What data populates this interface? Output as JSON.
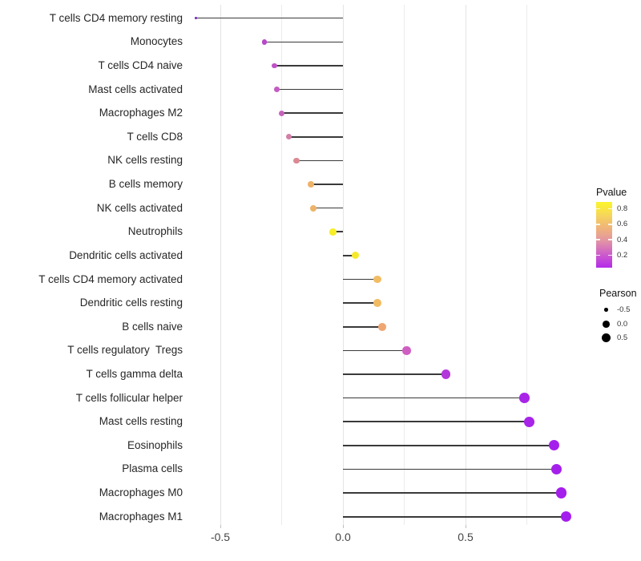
{
  "chart_data": {
    "type": "lollipop",
    "orientation": "horizontal",
    "title": "",
    "xlabel": "",
    "ylabel": "",
    "xlim": [
      -0.65,
      0.95
    ],
    "grid": "vertical-only",
    "x_ticks": [
      {
        "label": "-0.5",
        "value": -0.5
      },
      {
        "label": "0.0",
        "value": 0.0
      },
      {
        "label": "0.5",
        "value": 0.5
      }
    ],
    "gridline_values": [
      -0.5,
      -0.25,
      0.0,
      0.25,
      0.5,
      0.75
    ],
    "points": [
      {
        "label": "T cells CD4 memory resting",
        "pearson": -0.6,
        "color": "#7127b8",
        "pvalue_approx": 0.02
      },
      {
        "label": "Monocytes",
        "pearson": -0.32,
        "color": "#b648c8",
        "pvalue_approx": 0.12
      },
      {
        "label": "T cells CD4 naive",
        "pearson": -0.28,
        "color": "#bf52c6",
        "pvalue_approx": 0.14
      },
      {
        "label": "Mast cells activated",
        "pearson": -0.27,
        "color": "#c45cc2",
        "pvalue_approx": 0.16
      },
      {
        "label": "Macrophages M2",
        "pearson": -0.25,
        "color": "#c763bd",
        "pvalue_approx": 0.18
      },
      {
        "label": "T cells CD8",
        "pearson": -0.22,
        "color": "#d37fa8",
        "pvalue_approx": 0.32
      },
      {
        "label": "NK cells resting",
        "pearson": -0.19,
        "color": "#da8a93",
        "pvalue_approx": 0.42
      },
      {
        "label": "B cells memory",
        "pearson": -0.13,
        "color": "#eeb268",
        "pvalue_approx": 0.6
      },
      {
        "label": "NK cells activated",
        "pearson": -0.12,
        "color": "#eeb366",
        "pvalue_approx": 0.6
      },
      {
        "label": "Neutrophils",
        "pearson": -0.04,
        "color": "#f7ee26",
        "pvalue_approx": 0.85
      },
      {
        "label": "Dendritic cells activated",
        "pearson": 0.05,
        "color": "#f5e92b",
        "pvalue_approx": 0.84
      },
      {
        "label": "T cells CD4 memory activated",
        "pearson": 0.14,
        "color": "#f2bc63",
        "pvalue_approx": 0.63
      },
      {
        "label": "Dendritic cells resting",
        "pearson": 0.14,
        "color": "#f1bb64",
        "pvalue_approx": 0.63
      },
      {
        "label": "B cells naive",
        "pearson": 0.16,
        "color": "#efa673",
        "pvalue_approx": 0.55
      },
      {
        "label": "T cells regulatory  Tregs",
        "pearson": 0.26,
        "color": "#cf5ec3",
        "pvalue_approx": 0.18
      },
      {
        "label": "T cells gamma delta",
        "pearson": 0.42,
        "color": "#b338da",
        "pvalue_approx": 0.08
      },
      {
        "label": "T cells follicular helper",
        "pearson": 0.74,
        "color": "#a825e8",
        "pvalue_approx": 0.03
      },
      {
        "label": "Mast cells resting",
        "pearson": 0.76,
        "color": "#a824e9",
        "pvalue_approx": 0.03
      },
      {
        "label": "Eosinophils",
        "pearson": 0.86,
        "color": "#a51fec",
        "pvalue_approx": 0.02
      },
      {
        "label": "Plasma cells",
        "pearson": 0.87,
        "color": "#a51feb",
        "pvalue_approx": 0.02
      },
      {
        "label": "Macrophages M0",
        "pearson": 0.89,
        "color": "#a41eec",
        "pvalue_approx": 0.015
      },
      {
        "label": "Macrophages M1",
        "pearson": 0.91,
        "color": "#a41eed",
        "pvalue_approx": 0.015
      }
    ],
    "legend": {
      "pvalue": {
        "title": "Pvalue",
        "ticks": [
          {
            "label": "0.8",
            "value": 0.8
          },
          {
            "label": "0.6",
            "value": 0.6
          },
          {
            "label": "0.4",
            "value": 0.4
          },
          {
            "label": "0.2",
            "value": 0.2
          }
        ],
        "bar_value_top": 0.887,
        "bar_value_bottom": 0.042,
        "gradient_bottom_to_top": [
          {
            "pos": "0%",
            "color": "#b32be9"
          },
          {
            "pos": "10%",
            "color": "#c143db"
          },
          {
            "pos": "20%",
            "color": "#cd5bcb"
          },
          {
            "pos": "30%",
            "color": "#d778b8"
          },
          {
            "pos": "40%",
            "color": "#e192a6"
          },
          {
            "pos": "50%",
            "color": "#e9a48f"
          },
          {
            "pos": "60%",
            "color": "#efb37b"
          },
          {
            "pos": "70%",
            "color": "#f3c46a"
          },
          {
            "pos": "80%",
            "color": "#f6d65b"
          },
          {
            "pos": "90%",
            "color": "#f9e73f"
          },
          {
            "pos": "100%",
            "color": "#fbf42b"
          }
        ]
      },
      "pearson": {
        "title": "Pearson",
        "items": [
          {
            "label": "-0.5",
            "value": -0.5
          },
          {
            "label": "0.0",
            "value": 0.0
          },
          {
            "label": "0.5",
            "value": 0.5
          }
        ]
      }
    },
    "colors": {
      "stem": "#3a3a3a",
      "grid": "#ececec",
      "axis_text": "#454545",
      "label_text": "#262626",
      "background": "#ffffff"
    }
  }
}
